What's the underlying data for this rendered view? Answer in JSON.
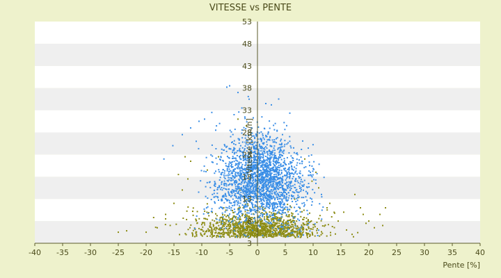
{
  "chart_data": {
    "type": "scatter",
    "title": "VITESSE vs PENTE",
    "xlabel": "Pente [%]",
    "ylabel": "Vitesse [km/h]",
    "xlim": [
      -40,
      40
    ],
    "ylim": [
      3,
      53
    ],
    "x_ticks": [
      "-40",
      "-35",
      "-30",
      "-25",
      "-20",
      "-15",
      "-10",
      "-5",
      "0",
      "5",
      "10",
      "15",
      "20",
      "25",
      "30",
      "35",
      "40"
    ],
    "y_ticks": [
      "3",
      "8",
      "13",
      "18",
      "23",
      "28",
      "33",
      "38",
      "43",
      "48",
      "53"
    ],
    "grid": "horizontal alternating bands",
    "legend": "none",
    "colors": {
      "background": "#eef2cc",
      "band_light": "#ffffff",
      "band_dark": "#efefef",
      "axis": "#5a5a2a",
      "series_blue": "#3a8ee6",
      "series_olive": "#8c8c14"
    },
    "series": [
      {
        "color": "#3a8ee6",
        "cluster": {
          "x_center": 0.5,
          "x_spread": 3.8,
          "y_center": 18.5,
          "y_spread": 4.8,
          "count": 2200
        },
        "x": [
          -5.5,
          -5.0,
          -3.5,
          1.5,
          2.5,
          -8.2,
          -9.5,
          -10.5,
          -12.0,
          -13.5,
          -15.2,
          -16.8,
          -11.0,
          -7.5,
          -6.8,
          -4.2,
          -2.8,
          4.5,
          5.8,
          6.5,
          7.2,
          8.0,
          9.5,
          10.5,
          11.5,
          -1.5,
          0.8,
          3.2,
          -6.0,
          -3.0
        ],
        "y": [
          38.2,
          38.5,
          37.0,
          34.5,
          34.2,
          32.5,
          31.0,
          30.5,
          29.0,
          27.5,
          25.0,
          22.0,
          26.0,
          28.5,
          30.0,
          32.0,
          33.5,
          27.5,
          26.0,
          24.5,
          23.0,
          21.5,
          19.0,
          16.5,
          14.0,
          35.5,
          31.5,
          30.0,
          24.0,
          22.0
        ]
      },
      {
        "color": "#8c8c14",
        "cluster": {
          "x_center": 0.0,
          "x_spread": 5.5,
          "y_center": 6.5,
          "y_spread": 2.6,
          "count": 1300
        },
        "x": [
          -25.0,
          -23.5,
          -20.0,
          -18.0,
          -16.5,
          -15.0,
          -13.5,
          -12.5,
          13.0,
          14.5,
          15.5,
          16.0,
          17.0,
          17.5,
          18.5,
          19.0,
          19.5,
          20.0,
          21.0,
          22.0,
          22.5,
          23.0,
          -16.5,
          -14.2,
          -13.0,
          -12.0,
          11.0,
          12.5,
          10.5,
          9.8,
          8.5,
          -7.0,
          -9.0,
          -3.5,
          -2.0
        ],
        "y": [
          5.5,
          5.8,
          5.5,
          6.5,
          8.5,
          12.0,
          15.0,
          17.5,
          12.0,
          8.0,
          10.0,
          6.0,
          5.0,
          14.0,
          11.0,
          9.5,
          7.5,
          8.0,
          6.5,
          9.5,
          7.0,
          11.0,
          9.5,
          18.5,
          22.5,
          21.5,
          15.5,
          11.0,
          19.0,
          17.0,
          22.0,
          22.5,
          19.5,
          31.0,
          29.5
        ]
      }
    ]
  }
}
